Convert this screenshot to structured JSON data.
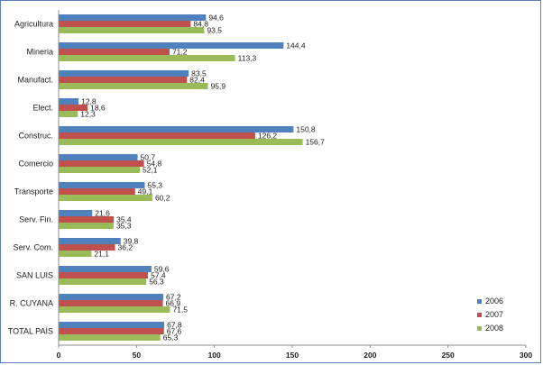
{
  "chart_data": {
    "type": "bar",
    "orientation": "horizontal",
    "categories": [
      "Agricultura",
      "Mineria",
      "Manufact.",
      "Elect.",
      "Construc.",
      "Comercio",
      "Transporte",
      "Serv. Fin.",
      "Serv. Com.",
      "SAN LUIS",
      "R. CUYANA",
      "TOTAL PAÍS"
    ],
    "series": [
      {
        "name": "2006",
        "color": "#4f81bd",
        "values": [
          94.6,
          144.4,
          83.5,
          12.8,
          150.8,
          50.7,
          55.3,
          21.6,
          39.8,
          59.6,
          67.2,
          67.8
        ]
      },
      {
        "name": "2007",
        "color": "#c0504d",
        "values": [
          84.8,
          71.2,
          82.4,
          18.6,
          126.2,
          54.8,
          49.1,
          35.4,
          36.2,
          57.4,
          66.9,
          67.6
        ]
      },
      {
        "name": "2008",
        "color": "#9bbb59",
        "values": [
          93.5,
          113.3,
          95.9,
          12.3,
          156.7,
          52.1,
          60.2,
          35.3,
          21.1,
          56.3,
          71.5,
          65.3
        ]
      }
    ],
    "value_labels": [
      [
        "94,6",
        "84,8",
        "93,5"
      ],
      [
        "144,4",
        "71,2",
        "113,3"
      ],
      [
        "83,5",
        "82,4",
        "95,9"
      ],
      [
        "12,8",
        "18,6",
        "12,3"
      ],
      [
        "150,8",
        "126,2",
        "156,7"
      ],
      [
        "50,7",
        "54,8",
        "52,1"
      ],
      [
        "55,3",
        "49,1",
        "60,2"
      ],
      [
        "21,6",
        "35,4",
        "35,3"
      ],
      [
        "39,8",
        "36,2",
        "21,1"
      ],
      [
        "59,6",
        "57,4",
        "56,3"
      ],
      [
        "67,2",
        "66,9",
        "71,5"
      ],
      [
        "67,8",
        "67,6",
        "65,3"
      ]
    ],
    "xlim": [
      0,
      300
    ],
    "xticks": [
      0,
      50,
      100,
      150,
      200,
      250,
      300
    ],
    "grid": false,
    "legend": {
      "placement": "bottom-right",
      "entries": [
        "2006",
        "2007",
        "2008"
      ]
    },
    "title": "",
    "xlabel": "",
    "ylabel": ""
  }
}
